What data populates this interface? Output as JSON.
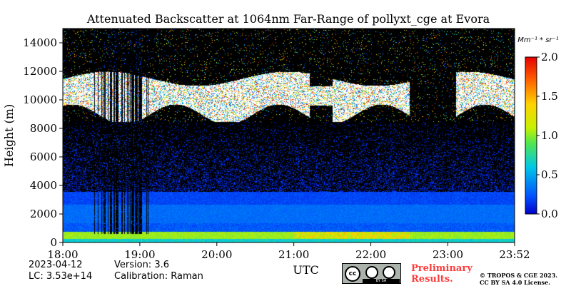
{
  "chart_data": {
    "type": "heatmap",
    "title": "Attenuated Backscatter at 1064nm Far-Range of pollyxt_cge at Evora",
    "xlabel": "UTC",
    "ylabel": "Height (m)",
    "x_tick_labels": [
      "18:00",
      "19:00",
      "20:00",
      "21:00",
      "22:00",
      "23:00",
      "23:52"
    ],
    "x_tick_hours": [
      18.0,
      19.0,
      20.0,
      21.0,
      22.0,
      23.0,
      23.867
    ],
    "xlim_hours": [
      18.0,
      23.867
    ],
    "y_ticks": [
      0,
      2000,
      4000,
      6000,
      8000,
      10000,
      12000,
      14000
    ],
    "ylim": [
      0,
      15000
    ],
    "colorbar": {
      "label": "Mm⁻¹ * sr⁻¹",
      "ticks": [
        0.0,
        0.5,
        1.0,
        1.5,
        2.0
      ],
      "tick_labels": [
        "0.0",
        "0.5",
        "1.0",
        "1.5",
        "2.0"
      ],
      "range": [
        0.0,
        2.0
      ],
      "colormap": "jet"
    },
    "features": {
      "boundary_layer": {
        "height_range": [
          0,
          800
        ],
        "value": 1.2
      },
      "aerosol_layer": {
        "height_range": [
          800,
          3500
        ],
        "value": 0.35
      },
      "cirrus_cloud": {
        "height_range": [
          8500,
          12000
        ],
        "value": 2.0
      }
    }
  },
  "footer": {
    "date": "2023-04-12",
    "lc": "LC: 3.53e+14",
    "version": "Version: 3.6",
    "calibration": "Calibration: Raman",
    "preliminary_line1": "Preliminary",
    "preliminary_line2": "Results.",
    "copyright_line1": "© TROPOS & CGE 2023.",
    "copyright_line2": "CC BY SA 4.0 License.",
    "cc_badge_text": "cc",
    "cc_strip_text": "BY    SA"
  }
}
